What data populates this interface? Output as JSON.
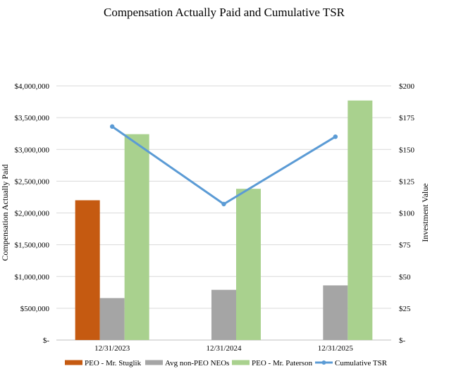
{
  "chart_data": {
    "type": "bar",
    "title": "Compensation Actually Paid and Cumulative TSR",
    "categories": [
      "12/31/2023",
      "12/31/2024",
      "12/31/2025"
    ],
    "ylabel": "Compensation Actually Paid",
    "y2label": "Investment Value",
    "ylim": [
      0,
      4000000
    ],
    "y2lim": [
      0,
      200
    ],
    "yticks": [
      "$-",
      "$500,000",
      "$1,000,000",
      "$1,500,000",
      "$2,000,000",
      "$2,500,000",
      "$3,000,000",
      "$3,500,000",
      "$4,000,000"
    ],
    "y2ticks": [
      "$-",
      "$25",
      "$50",
      "$75",
      "$100",
      "$125",
      "$150",
      "$175",
      "$200"
    ],
    "grid": true,
    "legend_position": "bottom",
    "series": [
      {
        "name": "PEO - Mr. Stuglik",
        "type": "bar",
        "color": "#C55A11",
        "values": [
          2200000,
          null,
          null
        ]
      },
      {
        "name": "Avg non-PEO NEOs",
        "type": "bar",
        "color": "#A5A5A5",
        "values": [
          660000,
          790000,
          860000
        ]
      },
      {
        "name": "PEO - Mr. Paterson",
        "type": "bar",
        "color": "#A9D18E",
        "values": [
          3240000,
          2380000,
          3770000
        ]
      },
      {
        "name": "Cumulative TSR",
        "type": "line",
        "axis": "secondary",
        "color": "#5B9BD5",
        "values": [
          168,
          107,
          160
        ]
      }
    ]
  }
}
